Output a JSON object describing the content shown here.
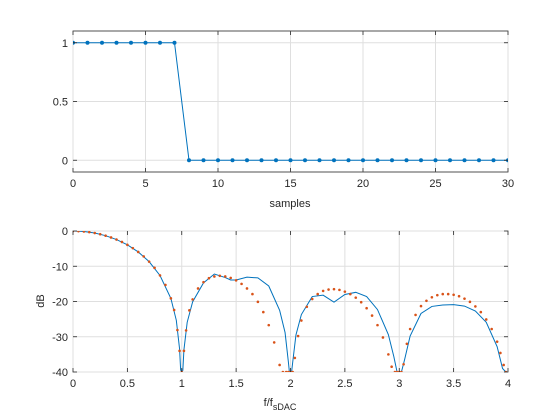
{
  "chart_data": [
    {
      "type": "line",
      "xlabel": "samples",
      "ylabel": "",
      "xlim": [
        0,
        30
      ],
      "ylim": [
        -0.1,
        1.1
      ],
      "xticks": [
        0,
        5,
        10,
        15,
        20,
        25,
        30
      ],
      "yticks": [
        0,
        0.5,
        1
      ],
      "grid": true,
      "series": [
        {
          "x": [
            0,
            1,
            2,
            3,
            4,
            5,
            6,
            7,
            8,
            9,
            10,
            11,
            12,
            13,
            14,
            15,
            16,
            17,
            18,
            19,
            20,
            21,
            22,
            23,
            24,
            25,
            26,
            27,
            28,
            29,
            30
          ],
          "values": [
            1,
            1,
            1,
            1,
            1,
            1,
            1,
            1,
            0,
            0,
            0,
            0,
            0,
            0,
            0,
            0,
            0,
            0,
            0,
            0,
            0,
            0,
            0,
            0,
            0,
            0,
            0,
            0,
            0,
            0,
            0
          ],
          "color": "#0072BD",
          "marker": "dot",
          "line": true
        }
      ]
    },
    {
      "type": "line",
      "xlabel_main": "f/f",
      "xlabel_sub": "sDAC",
      "ylabel": "dB",
      "xlim": [
        0,
        4
      ],
      "ylim": [
        -40,
        0
      ],
      "xticks": [
        0,
        0.5,
        1,
        1.5,
        2,
        2.5,
        3,
        3.5,
        4
      ],
      "yticks": [
        0,
        -10,
        -20,
        -30,
        -40
      ],
      "grid": true,
      "series": [
        {
          "style": "solid line",
          "color": "#0072BD",
          "x": [
            0.02,
            0.1,
            0.2,
            0.3,
            0.4,
            0.5,
            0.6,
            0.7,
            0.8,
            0.9,
            0.95,
            0.98,
            0.99,
            1.01,
            1.02,
            1.05,
            1.1,
            1.2,
            1.3,
            1.4,
            1.45,
            1.5,
            1.6,
            1.7,
            1.8,
            1.9,
            1.95,
            1.98,
            1.99,
            2.01,
            2.02,
            2.05,
            2.1,
            2.2,
            2.3,
            2.4,
            2.5,
            2.6,
            2.7,
            2.8,
            2.9,
            2.95,
            2.98,
            2.99,
            3.01,
            3.02,
            3.05,
            3.1,
            3.2,
            3.3,
            3.4,
            3.5,
            3.6,
            3.7,
            3.8,
            3.9,
            3.95,
            3.98,
            3.99
          ],
          "values": [
            0,
            -0.14,
            -0.58,
            -1.33,
            -2.42,
            -3.92,
            -5.94,
            -8.69,
            -12.62,
            -19.12,
            -25.33,
            -33.44,
            -39.5,
            -39.5,
            -33.7,
            -25.9,
            -20.1,
            -14.7,
            -12.2,
            -13.2,
            -13.9,
            -13.9,
            -13.1,
            -13.3,
            -15.6,
            -22.5,
            -28.8,
            -37.0,
            -40.0,
            -40.0,
            -37.3,
            -29.5,
            -23.7,
            -18.6,
            -18.2,
            -20.2,
            -18.0,
            -17.4,
            -18.6,
            -22.3,
            -29.4,
            -35.6,
            -40.0,
            -40.0,
            -40.0,
            -40.0,
            -36.4,
            -29.8,
            -23.4,
            -21.4,
            -21.0,
            -20.9,
            -21.3,
            -22.7,
            -25.9,
            -32.8,
            -39.0,
            -40.0,
            -40.0
          ]
        },
        {
          "style": "dotted",
          "color": "#D95319",
          "x": [
            0,
            0.05,
            0.1,
            0.15,
            0.2,
            0.25,
            0.3,
            0.35,
            0.4,
            0.45,
            0.5,
            0.55,
            0.6,
            0.65,
            0.7,
            0.75,
            0.8,
            0.85,
            0.9,
            0.93,
            0.96,
            0.98,
            1.0,
            1.02,
            1.04,
            1.07,
            1.1,
            1.15,
            1.2,
            1.25,
            1.3,
            1.35,
            1.4,
            1.45,
            1.5,
            1.55,
            1.6,
            1.65,
            1.7,
            1.75,
            1.8,
            1.85,
            1.9,
            1.93,
            1.96,
            1.98,
            2.0,
            2.02,
            2.04,
            2.07,
            2.1,
            2.15,
            2.2,
            2.25,
            2.3,
            2.35,
            2.4,
            2.45,
            2.5,
            2.55,
            2.6,
            2.65,
            2.7,
            2.75,
            2.8,
            2.85,
            2.9,
            2.93,
            2.96,
            2.98,
            3.0,
            3.02,
            3.04,
            3.07,
            3.1,
            3.15,
            3.2,
            3.25,
            3.3,
            3.35,
            3.4,
            3.45,
            3.5,
            3.55,
            3.6,
            3.65,
            3.7,
            3.75,
            3.8,
            3.85,
            3.9,
            3.93,
            3.96,
            3.98
          ],
          "values": [
            0,
            -0.04,
            -0.14,
            -0.32,
            -0.58,
            -0.91,
            -1.33,
            -1.83,
            -2.42,
            -3.11,
            -3.92,
            -4.86,
            -5.94,
            -7.2,
            -8.69,
            -10.45,
            -12.6,
            -15.3,
            -19.1,
            -22.4,
            -28.1,
            -34.0,
            -40.0,
            -34.0,
            -28.2,
            -22.5,
            -19.4,
            -16.3,
            -14.5,
            -13.4,
            -12.9,
            -12.7,
            -12.9,
            -13.3,
            -14.0,
            -15.0,
            -16.3,
            -17.9,
            -20.1,
            -23.0,
            -26.7,
            -31.6,
            -38.0,
            -40.0,
            -40.0,
            -40.0,
            -40.0,
            -40.0,
            -36.0,
            -29.8,
            -25.4,
            -21.5,
            -19.3,
            -17.9,
            -17.0,
            -16.6,
            -16.5,
            -16.7,
            -17.2,
            -17.9,
            -18.9,
            -20.2,
            -21.9,
            -24.0,
            -26.7,
            -30.2,
            -35.0,
            -38.5,
            -40.0,
            -40.0,
            -40.0,
            -40.0,
            -37.8,
            -32.0,
            -27.8,
            -23.8,
            -21.3,
            -19.8,
            -18.8,
            -18.2,
            -17.9,
            -17.9,
            -18.1,
            -18.5,
            -19.2,
            -20.1,
            -21.4,
            -23.0,
            -25.1,
            -27.8,
            -31.4,
            -34.6,
            -38.0,
            -40.0
          ]
        }
      ]
    }
  ]
}
